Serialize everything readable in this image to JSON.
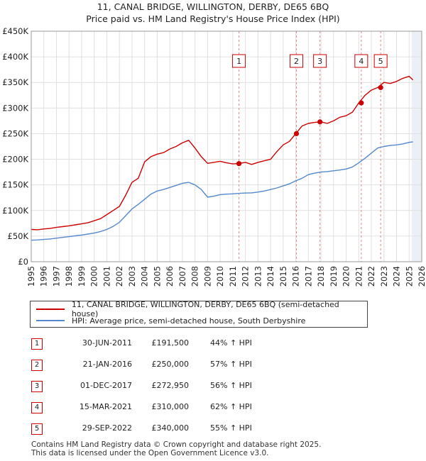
{
  "title_line1": "11, CANAL BRIDGE, WILLINGTON, DERBY, DE65 6BQ",
  "title_line2": "Price paid vs. HM Land Registry's House Price Index (HPI)",
  "colors": {
    "property": "#cc0000",
    "hpi": "#5588cc",
    "shade": "#dde6f2",
    "grid": "#e0e0e0",
    "vline": "#dd8888"
  },
  "legend": {
    "property_label": "11, CANAL BRIDGE, WILLINGTON, DERBY, DE65 6BQ (semi-detached house)",
    "hpi_label": "HPI: Average price, semi-detached house, South Derbyshire"
  },
  "sales": [
    {
      "num": "1",
      "date": "30-JUN-2011",
      "price": "£191,500",
      "hpi": "44% ↑ HPI"
    },
    {
      "num": "2",
      "date": "21-JAN-2016",
      "price": "£250,000",
      "hpi": "57% ↑ HPI"
    },
    {
      "num": "3",
      "date": "01-DEC-2017",
      "price": "£272,950",
      "hpi": "56% ↑ HPI"
    },
    {
      "num": "4",
      "date": "15-MAR-2021",
      "price": "£310,000",
      "hpi": "62% ↑ HPI"
    },
    {
      "num": "5",
      "date": "29-SEP-2022",
      "price": "£340,000",
      "hpi": "55% ↑ HPI"
    }
  ],
  "footer_line1": "Contains HM Land Registry data © Crown copyright and database right 2025.",
  "footer_line2": "This data is licensed under the Open Government Licence v3.0.",
  "chart_data": {
    "type": "line",
    "title": "Price paid vs. HM Land Registry's House Price Index (HPI)",
    "xlabel": "",
    "ylabel": "",
    "xlim": [
      1995,
      2026
    ],
    "ylim": [
      0,
      450000
    ],
    "y_ticks": [
      {
        "value": 0,
        "label": "£0"
      },
      {
        "value": 50000,
        "label": "£50K"
      },
      {
        "value": 100000,
        "label": "£100K"
      },
      {
        "value": 150000,
        "label": "£150K"
      },
      {
        "value": 200000,
        "label": "£200K"
      },
      {
        "value": 250000,
        "label": "£250K"
      },
      {
        "value": 300000,
        "label": "£300K"
      },
      {
        "value": 350000,
        "label": "£350K"
      },
      {
        "value": 400000,
        "label": "£400K"
      },
      {
        "value": 450000,
        "label": "£450K"
      }
    ],
    "x_ticks": [
      "1995",
      "1996",
      "1997",
      "1998",
      "1999",
      "2000",
      "2001",
      "2002",
      "2003",
      "2004",
      "2005",
      "2006",
      "2007",
      "2008",
      "2009",
      "2010",
      "2011",
      "2012",
      "2013",
      "2014",
      "2015",
      "2016",
      "2017",
      "2018",
      "2019",
      "2020",
      "2021",
      "2022",
      "2023",
      "2024",
      "2025",
      "2026"
    ],
    "grid": true,
    "legend_position": "below",
    "forecast_shade_from": 2025.2,
    "series": [
      {
        "name": "11, CANAL BRIDGE, WILLINGTON, DERBY, DE65 6BQ (semi-detached house)",
        "color": "#cc0000",
        "x": [
          1995.0,
          1995.5,
          1996.0,
          1996.5,
          1997.0,
          1997.5,
          1998.0,
          1998.5,
          1999.0,
          1999.5,
          2000.0,
          2000.5,
          2001.0,
          2001.5,
          2002.0,
          2002.5,
          2003.0,
          2003.5,
          2004.0,
          2004.5,
          2005.0,
          2005.5,
          2006.0,
          2006.5,
          2007.0,
          2007.5,
          2008.0,
          2008.5,
          2009.0,
          2009.5,
          2010.0,
          2010.5,
          2011.0,
          2011.5,
          2012.0,
          2012.5,
          2013.0,
          2013.5,
          2014.0,
          2014.5,
          2015.0,
          2015.5,
          2016.0,
          2016.5,
          2017.0,
          2017.5,
          2018.0,
          2018.5,
          2019.0,
          2019.5,
          2020.0,
          2020.5,
          2021.0,
          2021.5,
          2022.0,
          2022.5,
          2023.0,
          2023.5,
          2024.0,
          2024.5,
          2025.0,
          2025.3
        ],
        "y": [
          63000,
          62500,
          64000,
          65000,
          67000,
          68500,
          70000,
          72000,
          74000,
          76000,
          80000,
          84000,
          92000,
          100000,
          108000,
          130000,
          155000,
          163000,
          195000,
          205000,
          210000,
          213000,
          220000,
          225000,
          232000,
          237000,
          222000,
          205000,
          192000,
          194000,
          196000,
          193000,
          191000,
          191500,
          194000,
          190000,
          194000,
          197000,
          200000,
          215000,
          228000,
          235000,
          250000,
          265000,
          270000,
          272000,
          273000,
          270000,
          275000,
          282000,
          285000,
          292000,
          310000,
          325000,
          335000,
          340000,
          350000,
          348000,
          352000,
          358000,
          362000,
          355000
        ]
      },
      {
        "name": "HPI: Average price, semi-detached house, South Derbyshire",
        "color": "#5588cc",
        "x": [
          1995.0,
          1995.5,
          1996.0,
          1996.5,
          1997.0,
          1997.5,
          1998.0,
          1998.5,
          1999.0,
          1999.5,
          2000.0,
          2000.5,
          2001.0,
          2001.5,
          2002.0,
          2002.5,
          2003.0,
          2003.5,
          2004.0,
          2004.5,
          2005.0,
          2005.5,
          2006.0,
          2006.5,
          2007.0,
          2007.5,
          2008.0,
          2008.5,
          2009.0,
          2009.5,
          2010.0,
          2010.5,
          2011.0,
          2011.5,
          2012.0,
          2012.5,
          2013.0,
          2013.5,
          2014.0,
          2014.5,
          2015.0,
          2015.5,
          2016.0,
          2016.5,
          2017.0,
          2017.5,
          2018.0,
          2018.5,
          2019.0,
          2019.5,
          2020.0,
          2020.5,
          2021.0,
          2021.5,
          2022.0,
          2022.5,
          2023.0,
          2023.5,
          2024.0,
          2024.5,
          2025.0,
          2025.3
        ],
        "y": [
          42000,
          42500,
          43500,
          44500,
          46000,
          47500,
          49000,
          50500,
          52000,
          54000,
          56000,
          59000,
          63000,
          69000,
          77000,
          90000,
          103000,
          112000,
          122000,
          132000,
          138000,
          141000,
          145000,
          149000,
          153000,
          155000,
          150000,
          141000,
          126000,
          128000,
          131000,
          132000,
          132500,
          133500,
          134000,
          134500,
          136000,
          138000,
          141000,
          144000,
          148000,
          152000,
          158000,
          163000,
          170000,
          173000,
          175000,
          176000,
          177500,
          179000,
          181000,
          185000,
          193000,
          202000,
          212000,
          222000,
          225000,
          227000,
          228000,
          230000,
          233000,
          234000
        ]
      }
    ],
    "sale_points": [
      {
        "label": "1",
        "x": 2011.49,
        "y": 191500
      },
      {
        "label": "2",
        "x": 2016.05,
        "y": 250000
      },
      {
        "label": "3",
        "x": 2017.92,
        "y": 272950
      },
      {
        "label": "4",
        "x": 2021.2,
        "y": 310000
      },
      {
        "label": "5",
        "x": 2022.74,
        "y": 340000
      }
    ]
  }
}
